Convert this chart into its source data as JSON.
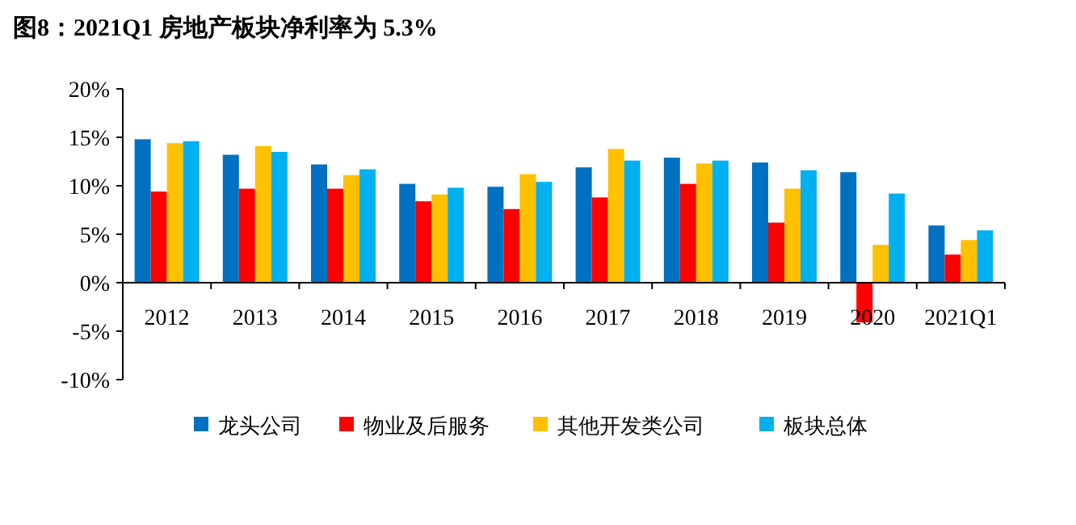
{
  "chart_data": {
    "type": "bar",
    "title": "图8：2021Q1 房地产板块净利率为 5.3%",
    "categories": [
      "2012",
      "2013",
      "2014",
      "2015",
      "2016",
      "2017",
      "2018",
      "2019",
      "2020",
      "2021Q1"
    ],
    "series": [
      {
        "name": "龙头公司",
        "color": "#0070c0",
        "values": [
          14.8,
          13.2,
          12.2,
          10.2,
          9.9,
          11.9,
          12.9,
          12.4,
          11.4,
          5.9
        ]
      },
      {
        "name": "物业及后服务",
        "color": "#ff0000",
        "values": [
          9.4,
          9.7,
          9.7,
          8.4,
          7.6,
          8.8,
          10.2,
          6.2,
          -4.1,
          2.9
        ]
      },
      {
        "name": "其他开发类公司",
        "color": "#ffc000",
        "values": [
          14.4,
          14.1,
          11.1,
          9.1,
          11.2,
          13.8,
          12.3,
          9.7,
          3.9,
          4.4
        ]
      },
      {
        "name": "板块总体",
        "color": "#00b0f0",
        "values": [
          14.6,
          13.5,
          11.7,
          9.8,
          10.4,
          12.6,
          12.6,
          11.6,
          9.2,
          5.4
        ]
      }
    ],
    "ylim": [
      -10,
      20
    ],
    "yticks": [
      {
        "value": -10,
        "label": "-10%"
      },
      {
        "value": -5,
        "label": "-5%"
      },
      {
        "value": 0,
        "label": "0%"
      },
      {
        "value": 5,
        "label": "5%"
      },
      {
        "value": 10,
        "label": "10%"
      },
      {
        "value": 15,
        "label": "15%"
      },
      {
        "value": 20,
        "label": "20%"
      }
    ],
    "legend": "bottom",
    "grid": false
  }
}
